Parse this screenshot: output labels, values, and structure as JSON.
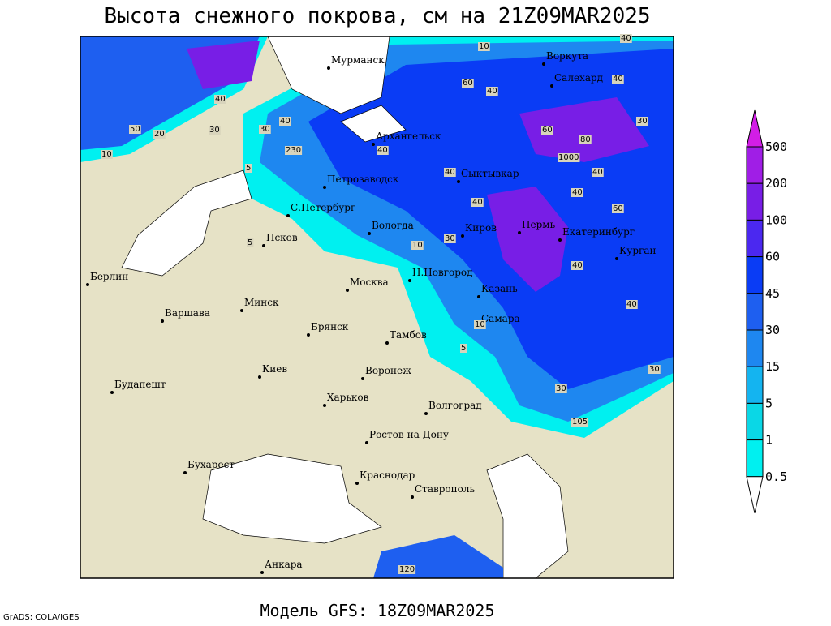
{
  "title": "Высота снежного покрова, см на 21Z09MAR2025",
  "footer": "Модель GFS: 18Z09MAR2025",
  "credit": "GrADS: COLA/IGES",
  "cities": [
    "Мурманск",
    "Воркута",
    "Салехард",
    "Архангельск",
    "Петрозаводск",
    "Сыктывкар",
    "С.Петербург",
    "Вологда",
    "Киров",
    "Пермь",
    "Екатеринбург",
    "Курган",
    "Псков",
    "Н.Новгород",
    "Казань",
    "Москва",
    "Минск",
    "Берлин",
    "Варшава",
    "Брянск",
    "Тамбов",
    "Самара",
    "Воронеж",
    "Киев",
    "Харьков",
    "Будапешт",
    "Волгоград",
    "Ростов-на-Дону",
    "Бухарест",
    "Краснодар",
    "Ставрополь",
    "Анкара"
  ],
  "contour_labels": [
    40,
    10,
    60,
    40,
    40,
    40,
    30,
    50,
    20,
    10,
    30,
    40,
    230,
    5,
    40,
    60,
    40,
    30,
    1000,
    40,
    60,
    80,
    40,
    40,
    10,
    30,
    5,
    10,
    40,
    30,
    30,
    105,
    120,
    40,
    5
  ],
  "legend": {
    "labels": [
      500,
      200,
      100,
      60,
      45,
      30,
      15,
      5,
      1,
      0.5
    ],
    "colors": [
      "#d21ee6",
      "#a01ee6",
      "#781ee6",
      "#4b28f0",
      "#0a3cf5",
      "#1e5ff0",
      "#1e87f0",
      "#14b4f0",
      "#0ad7e6",
      "#00f0f0",
      "#a0f5f5",
      "#ffffff"
    ]
  }
}
